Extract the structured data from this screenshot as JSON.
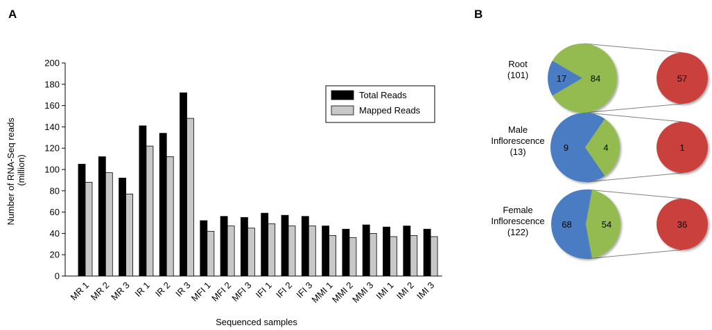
{
  "panels": {
    "a": "A",
    "b": "B"
  },
  "chart_data": [
    {
      "type": "bar",
      "title": "",
      "xlabel": "Sequenced samples",
      "ylabel": "Number of RNA-Seq reads (million)",
      "ylabel_lines": [
        "Number of RNA-Seq reads",
        "(million)"
      ],
      "ylim": [
        0,
        200
      ],
      "yticks": [
        0,
        20,
        40,
        60,
        80,
        100,
        120,
        140,
        160,
        180,
        200
      ],
      "grid": false,
      "legend_position": "top-right",
      "categories": [
        "MR 1",
        "MR 2",
        "MR 3",
        "IR 1",
        "IR 2",
        "IR 3",
        "MFI 1",
        "MFI 2",
        "MFI 3",
        "IFI 1",
        "IFI 2",
        "IFI 3",
        "MMI 1",
        "MMI 2",
        "MMI 3",
        "IMI 1",
        "IMI 2",
        "IMI 3"
      ],
      "series": [
        {
          "name": "Total Reads",
          "color": "#000000",
          "values": [
            105,
            112,
            92,
            141,
            134,
            172,
            52,
            56,
            55,
            59,
            57,
            56,
            47,
            44,
            48,
            46,
            47,
            44
          ]
        },
        {
          "name": "Mapped Reads",
          "color": "#c8c8c8",
          "values": [
            88,
            97,
            77,
            122,
            112,
            148,
            42,
            47,
            45,
            49,
            47,
            47,
            38,
            36,
            40,
            37,
            38,
            37
          ]
        }
      ]
    },
    {
      "type": "pie",
      "title": "",
      "groups": [
        {
          "label_lines": [
            "Root",
            "(101)"
          ],
          "slices": [
            {
              "value": 17,
              "color": "#4a7bc3"
            },
            {
              "value": 84,
              "color": "#93bb4f"
            }
          ],
          "detail": {
            "value": 57,
            "color": "#c9403c"
          }
        },
        {
          "label_lines": [
            "Male",
            "Inflorescence",
            "(13)"
          ],
          "slices": [
            {
              "value": 9,
              "color": "#4a7bc3"
            },
            {
              "value": 4,
              "color": "#93bb4f"
            }
          ],
          "detail": {
            "value": 1,
            "color": "#c9403c"
          }
        },
        {
          "label_lines": [
            "Female",
            "Inflorescence",
            "(122)"
          ],
          "slices": [
            {
              "value": 68,
              "color": "#4a7bc3"
            },
            {
              "value": 54,
              "color": "#93bb4f"
            }
          ],
          "detail": {
            "value": 36,
            "color": "#c9403c"
          }
        }
      ]
    }
  ]
}
